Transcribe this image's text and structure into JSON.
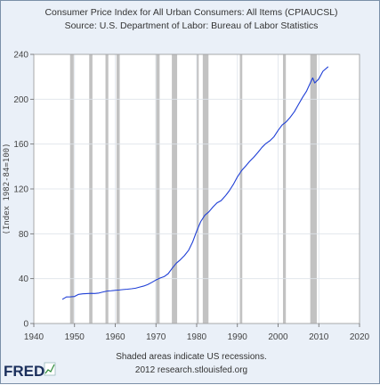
{
  "chart_data": {
    "type": "line",
    "title": "Consumer Price Index for All Urban Consumers: All Items (CPIAUCSL)",
    "subtitle": "Source: U.S. Department of Labor: Bureau of Labor Statistics",
    "xlabel": "",
    "ylabel": "(Index 1982-84=100)",
    "xlim": [
      1940,
      2020
    ],
    "ylim": [
      0,
      240
    ],
    "xticks": [
      1940,
      1950,
      1960,
      1970,
      1980,
      1990,
      2000,
      2010,
      2020
    ],
    "yticks": [
      0,
      40,
      80,
      120,
      160,
      200,
      240
    ],
    "x_tick_labels": [
      "1940",
      "1950",
      "1960",
      "1970",
      "1980",
      "1990",
      "2000",
      "2010",
      "2020"
    ],
    "y_tick_labels": [
      "0",
      "40",
      "80",
      "120",
      "160",
      "200",
      "240"
    ],
    "grid": true,
    "line_color": "#1f3fd6",
    "recession_color": "#c2c2c2",
    "plot_background": "#ffffff",
    "recessions": [
      [
        1948.9,
        1949.8
      ],
      [
        1953.6,
        1954.4
      ],
      [
        1957.6,
        1958.3
      ],
      [
        1960.3,
        1961.1
      ],
      [
        1969.9,
        1970.9
      ],
      [
        1973.9,
        1975.2
      ],
      [
        1980.0,
        1980.5
      ],
      [
        1981.5,
        1982.9
      ],
      [
        1990.6,
        1991.2
      ],
      [
        2001.2,
        2001.9
      ],
      [
        2007.9,
        2009.5
      ]
    ],
    "series": [
      {
        "x": [
          1947,
          1948,
          1949,
          1950,
          1951,
          1952,
          1953,
          1954,
          1955,
          1956,
          1957,
          1958,
          1959,
          1960,
          1961,
          1962,
          1963,
          1964,
          1965,
          1966,
          1967,
          1968,
          1969,
          1970,
          1971,
          1972,
          1973,
          1974,
          1975,
          1976,
          1977,
          1978,
          1979,
          1980,
          1981,
          1982,
          1983,
          1984,
          1985,
          1986,
          1987,
          1988,
          1989,
          1990,
          1991,
          1992,
          1993,
          1994,
          1995,
          1996,
          1997,
          1998,
          1999,
          2000,
          2001,
          2002,
          2003,
          2004,
          2005,
          2006,
          2007,
          2008,
          2008.5,
          2009,
          2010,
          2011,
          2012.3
        ],
        "values": [
          21.5,
          23.7,
          23.8,
          24.1,
          26.0,
          26.5,
          26.7,
          26.9,
          26.8,
          27.2,
          28.1,
          28.9,
          29.2,
          29.6,
          29.9,
          30.3,
          30.6,
          31.0,
          31.5,
          32.5,
          33.4,
          34.8,
          36.7,
          38.8,
          40.5,
          41.8,
          44.4,
          49.3,
          53.8,
          56.9,
          60.6,
          65.2,
          72.6,
          82.4,
          90.9,
          96.5,
          99.6,
          103.9,
          107.6,
          109.6,
          113.6,
          118.3,
          124.0,
          130.7,
          136.2,
          140.3,
          144.5,
          148.2,
          152.4,
          156.9,
          160.5,
          163.0,
          166.6,
          172.2,
          177.1,
          179.9,
          184.0,
          188.9,
          195.3,
          201.6,
          207.3,
          215.3,
          219.0,
          214.5,
          218.1,
          224.9,
          229.0
        ]
      }
    ]
  },
  "footer": {
    "note_line1": "Shaded areas indicate US recessions.",
    "note_line2": "2012 research.stlouisfed.org"
  },
  "logo": {
    "text": "FRED"
  }
}
